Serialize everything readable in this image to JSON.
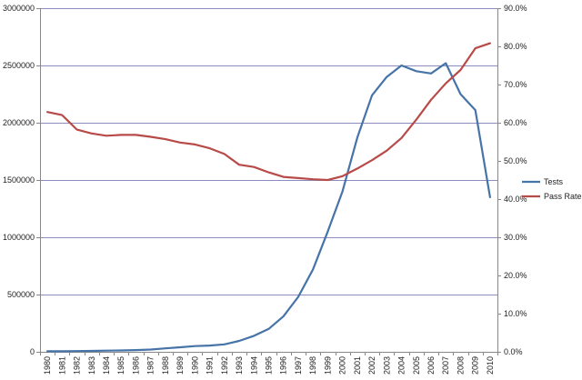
{
  "chart_data": {
    "type": "line",
    "x": [
      "1980",
      "1981",
      "1982",
      "1983",
      "1984",
      "1985",
      "1986",
      "1987",
      "1988",
      "1989",
      "1990",
      "1991",
      "1992",
      "1993",
      "1994",
      "1995",
      "1996",
      "1997",
      "1998",
      "1999",
      "2000",
      "2001",
      "2002",
      "2003",
      "2004",
      "2005",
      "2006",
      "2007",
      "2008",
      "2009",
      "2010"
    ],
    "x_tick_labels": [
      "1980",
      "1981",
      "1982",
      "1983",
      "1984",
      "1985",
      "1986",
      "1987",
      "1988",
      "1989",
      "1990",
      "1991",
      "1992",
      "1993",
      "1994",
      "1995",
      "1996",
      "1997",
      "1998",
      "1999",
      "2000",
      "2001",
      "2002",
      "2003",
      "2004",
      "2005",
      "2006",
      "2007",
      "2008",
      "2009",
      "2010"
    ],
    "series": [
      {
        "name": "Tests",
        "axis": "left",
        "color": "#4674a8",
        "values": [
          5000,
          5000,
          6000,
          8000,
          10000,
          12000,
          15000,
          20000,
          30000,
          40000,
          50000,
          55000,
          65000,
          95000,
          140000,
          200000,
          310000,
          480000,
          720000,
          1050000,
          1400000,
          1870000,
          2240000,
          2400000,
          2500000,
          2450000,
          2430000,
          2520000,
          2250000,
          2110000,
          1350000
        ]
      },
      {
        "name": "Pass Rate",
        "axis": "right",
        "color": "#b84a48",
        "values": [
          0.628,
          0.62,
          0.582,
          0.572,
          0.566,
          0.568,
          0.568,
          0.563,
          0.557,
          0.548,
          0.543,
          0.533,
          0.518,
          0.49,
          0.484,
          0.47,
          0.458,
          0.455,
          0.452,
          0.45,
          0.46,
          0.48,
          0.502,
          0.527,
          0.56,
          0.608,
          0.66,
          0.703,
          0.738,
          0.795,
          0.808
        ]
      }
    ],
    "y_left": {
      "ylim": [
        0,
        3000000
      ],
      "ticks": [
        0,
        500000,
        1000000,
        1500000,
        2000000,
        2500000,
        3000000
      ],
      "tick_labels": [
        "0",
        "500000",
        "1000000",
        "1500000",
        "2000000",
        "2500000",
        "3000000"
      ]
    },
    "y_right": {
      "ylim": [
        0,
        0.9
      ],
      "ticks": [
        0,
        0.1,
        0.2,
        0.3,
        0.4,
        0.5,
        0.6,
        0.7,
        0.8,
        0.9
      ],
      "tick_labels": [
        "0.0%",
        "10.0%",
        "20.0%",
        "30.0%",
        "40.0%",
        "50.0%",
        "60.0%",
        "70.0%",
        "80.0%",
        "90.0%"
      ]
    },
    "grid": true,
    "legend_position": "right",
    "title": "",
    "xlabel": "",
    "ylabel": "",
    "gridline_color": "#8c8cbe"
  }
}
